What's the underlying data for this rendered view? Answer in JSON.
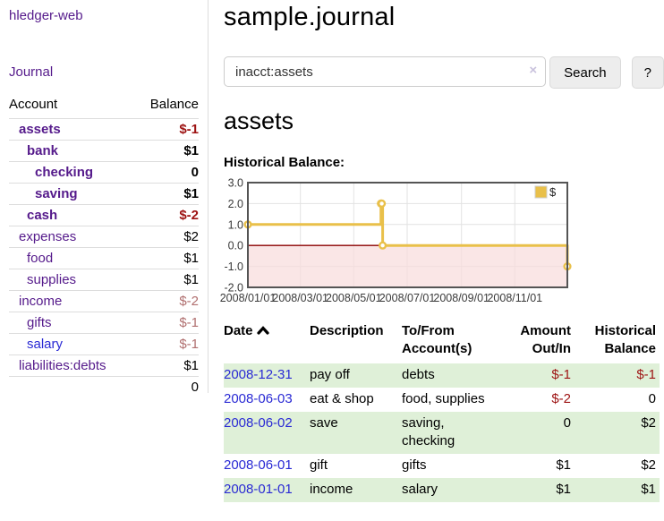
{
  "sidebar": {
    "brand": "hledger-web",
    "journal_label": "Journal",
    "accounts": {
      "header_account": "Account",
      "header_balance": "Balance",
      "rows": [
        {
          "name": "assets",
          "indent": 1,
          "bold": true,
          "link_color": "purple",
          "balance": "$-1",
          "balance_tone": "neg-strong"
        },
        {
          "name": "bank",
          "indent": 2,
          "bold": true,
          "link_color": "purple",
          "balance": "$1",
          "balance_tone": ""
        },
        {
          "name": "checking",
          "indent": 3,
          "bold": true,
          "link_color": "purple",
          "balance": "0",
          "balance_tone": ""
        },
        {
          "name": "saving",
          "indent": 3,
          "bold": true,
          "link_color": "purple",
          "balance": "$1",
          "balance_tone": ""
        },
        {
          "name": "cash",
          "indent": 2,
          "bold": true,
          "link_color": "purple",
          "balance": "$-2",
          "balance_tone": "neg-strong"
        },
        {
          "name": "expenses",
          "indent": 1,
          "bold": false,
          "link_color": "purple",
          "balance": "$2",
          "balance_tone": ""
        },
        {
          "name": "food",
          "indent": 2,
          "bold": false,
          "link_color": "purple",
          "balance": "$1",
          "balance_tone": ""
        },
        {
          "name": "supplies",
          "indent": 2,
          "bold": false,
          "link_color": "purple",
          "balance": "$1",
          "balance_tone": ""
        },
        {
          "name": "income",
          "indent": 1,
          "bold": false,
          "link_color": "purple",
          "balance": "$-2",
          "balance_tone": "neg-muted"
        },
        {
          "name": "gifts",
          "indent": 2,
          "bold": false,
          "link_color": "purple",
          "balance": "$-1",
          "balance_tone": "neg-muted"
        },
        {
          "name": "salary",
          "indent": 2,
          "bold": false,
          "link_color": "blue",
          "balance": "$-1",
          "balance_tone": "neg-muted"
        },
        {
          "name": "liabilities:debts",
          "indent": 1,
          "bold": false,
          "link_color": "purple",
          "balance": "$1",
          "balance_tone": ""
        }
      ],
      "total": "0"
    }
  },
  "header": {
    "title": "sample.journal"
  },
  "search": {
    "query": "inacct:assets",
    "clear_icon": "×",
    "button_label": "Search",
    "help_label": "?"
  },
  "account_page": {
    "heading": "assets",
    "chart_title": "Historical Balance:"
  },
  "chart_data": {
    "type": "line",
    "step": true,
    "title": "Historical Balance",
    "legend": {
      "label": "$",
      "position": "top-right"
    },
    "series": [
      {
        "name": "$",
        "color": "#e9c04a",
        "points": [
          {
            "x": "2008-01-01",
            "y": 1
          },
          {
            "x": "2008-06-01",
            "y": 2
          },
          {
            "x": "2008-06-02",
            "y": 2
          },
          {
            "x": "2008-06-03",
            "y": 0
          },
          {
            "x": "2008-12-31",
            "y": -1
          }
        ]
      }
    ],
    "xrange": [
      "2008-01-01",
      "2008-12-31"
    ],
    "xticks": [
      {
        "label": "2008/01/01",
        "date": "2008-01-01"
      },
      {
        "label": "2008/03/01",
        "date": "2008-03-01"
      },
      {
        "label": "2008/05/01",
        "date": "2008-05-01"
      },
      {
        "label": "2008/07/01",
        "date": "2008-07-01"
      },
      {
        "label": "2008/09/01",
        "date": "2008-09-01"
      },
      {
        "label": "2008/11/01",
        "date": "2008-11-01"
      }
    ],
    "ylim": [
      -2,
      3
    ],
    "yticks": [
      {
        "label": "3.0",
        "value": 3
      },
      {
        "label": "2.0",
        "value": 2
      },
      {
        "label": "1.0",
        "value": 1
      },
      {
        "label": "0.0",
        "value": 0
      },
      {
        "label": "-1.0",
        "value": -1
      },
      {
        "label": "-2.0",
        "value": -2
      }
    ],
    "grid": true,
    "negative_region_fill": "#f8dcdc",
    "zero_line_color": "#8b0000",
    "border_color": "#545454"
  },
  "register": {
    "columns": [
      "Date",
      "Description",
      "To/From Account(s)",
      "Amount Out/In",
      "Historical Balance"
    ],
    "sort": "date-ascending",
    "rows": [
      {
        "date": "2008-12-31",
        "description": "pay off",
        "accounts": "debts",
        "amount": "$-1",
        "amount_neg": true,
        "balance": "$-1",
        "balance_neg": true
      },
      {
        "date": "2008-06-03",
        "description": "eat & shop",
        "accounts": "food, supplies",
        "amount": "$-2",
        "amount_neg": true,
        "balance": "0",
        "balance_neg": false
      },
      {
        "date": "2008-06-02",
        "description": "save",
        "accounts": "saving, checking",
        "amount": "0",
        "amount_neg": false,
        "balance": "$2",
        "balance_neg": false
      },
      {
        "date": "2008-06-01",
        "description": "gift",
        "accounts": "gifts",
        "amount": "$1",
        "amount_neg": false,
        "balance": "$2",
        "balance_neg": false
      },
      {
        "date": "2008-01-01",
        "description": "income",
        "accounts": "salary",
        "amount": "$1",
        "amount_neg": false,
        "balance": "$1",
        "balance_neg": false
      }
    ]
  }
}
